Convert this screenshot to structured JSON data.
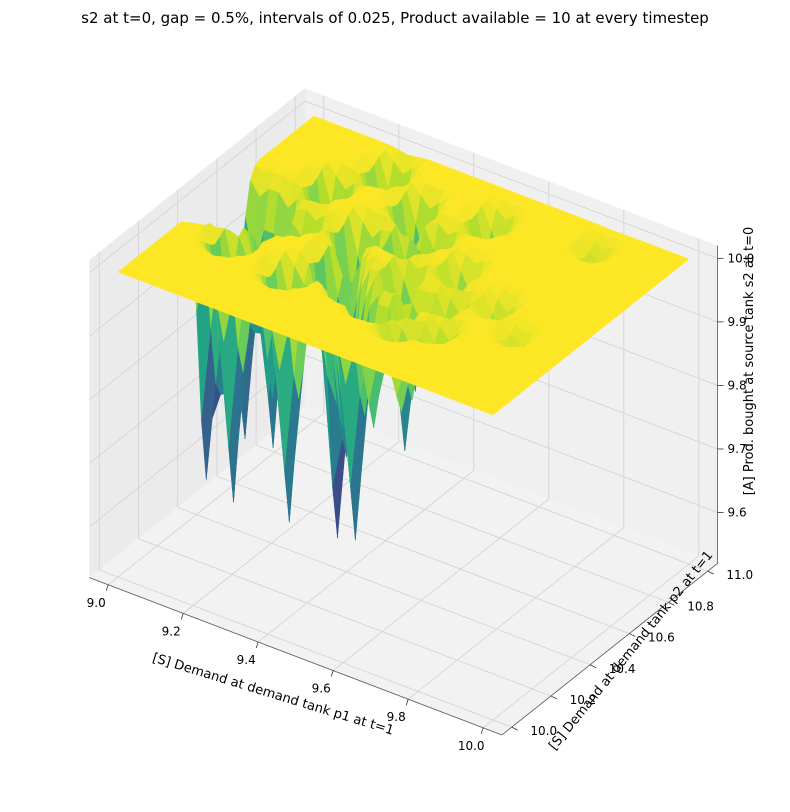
{
  "chart_data": {
    "type": "surface3d",
    "title": "s2 at t=0, gap = 0.5%, intervals of 0.025, Product available = 10 at every timestep",
    "xlabel": "[S] Demand at demand tank p1 at t=1",
    "ylabel": "[S] Demand at demand tank p2 at t=1",
    "zlabel": "[A] Prod. bought at source tank s2 at t=0",
    "x_range": [
      9.0,
      10.0
    ],
    "y_range": [
      10.0,
      11.0
    ],
    "z_range": [
      9.55,
      10.0
    ],
    "x_step": 0.025,
    "y_step": 0.025,
    "x_ticks": [
      {
        "value": 9.0,
        "label": "9.0"
      },
      {
        "value": 9.2,
        "label": "9.2"
      },
      {
        "value": 9.4,
        "label": "9.4"
      },
      {
        "value": 9.6,
        "label": "9.6"
      },
      {
        "value": 9.8,
        "label": "9.8"
      },
      {
        "value": 10.0,
        "label": "10.0"
      }
    ],
    "y_ticks": [
      {
        "value": 10.0,
        "label": "10.0"
      },
      {
        "value": 10.2,
        "label": "10.2"
      },
      {
        "value": 10.4,
        "label": "10.4"
      },
      {
        "value": 10.6,
        "label": "10.6"
      },
      {
        "value": 10.8,
        "label": "10.8"
      },
      {
        "value": 11.0,
        "label": "11.0"
      }
    ],
    "z_ticks": [
      {
        "value": 9.6,
        "label": "9.6"
      },
      {
        "value": 9.7,
        "label": "9.7"
      },
      {
        "value": 9.8,
        "label": "9.8"
      },
      {
        "value": 9.9,
        "label": "9.9"
      },
      {
        "value": 10.0,
        "label": "10.0"
      }
    ],
    "colormap": "viridis",
    "grid": true,
    "plateau_value": 10.0,
    "dips": [
      {
        "x": 9.0,
        "y": 10.45,
        "z": 9.57
      },
      {
        "x": 9.025,
        "y": 10.6,
        "z": 9.6
      },
      {
        "x": 9.05,
        "y": 10.5,
        "z": 9.65
      },
      {
        "x": 9.1,
        "y": 10.6,
        "z": 9.6
      },
      {
        "x": 9.125,
        "y": 10.35,
        "z": 9.58
      },
      {
        "x": 9.15,
        "y": 10.5,
        "z": 9.72
      },
      {
        "x": 9.175,
        "y": 10.75,
        "z": 9.68
      },
      {
        "x": 9.2,
        "y": 10.55,
        "z": 9.74
      },
      {
        "x": 9.25,
        "y": 10.9,
        "z": 9.72
      },
      {
        "x": 9.3,
        "y": 10.3,
        "z": 9.6
      },
      {
        "x": 9.325,
        "y": 10.6,
        "z": 9.63
      },
      {
        "x": 9.35,
        "y": 10.45,
        "z": 9.55
      },
      {
        "x": 9.375,
        "y": 10.8,
        "z": 9.7
      },
      {
        "x": 9.4,
        "y": 10.4,
        "z": 9.72
      },
      {
        "x": 9.425,
        "y": 10.65,
        "z": 9.66
      },
      {
        "x": 9.45,
        "y": 10.35,
        "z": 9.6
      },
      {
        "x": 9.475,
        "y": 10.7,
        "z": 9.76
      },
      {
        "x": 9.5,
        "y": 10.5,
        "z": 9.78
      },
      {
        "x": 9.525,
        "y": 10.3,
        "z": 9.8
      },
      {
        "x": 9.55,
        "y": 10.85,
        "z": 9.8
      },
      {
        "x": 9.575,
        "y": 10.4,
        "z": 9.83
      },
      {
        "x": 9.6,
        "y": 10.6,
        "z": 9.84
      },
      {
        "x": 9.625,
        "y": 10.25,
        "z": 9.86
      },
      {
        "x": 9.65,
        "y": 10.45,
        "z": 9.88
      },
      {
        "x": 9.7,
        "y": 10.3,
        "z": 9.9
      },
      {
        "x": 9.75,
        "y": 10.5,
        "z": 9.92
      },
      {
        "x": 9.8,
        "y": 10.9,
        "z": 9.95
      },
      {
        "x": 9.85,
        "y": 10.4,
        "z": 9.96
      }
    ]
  }
}
